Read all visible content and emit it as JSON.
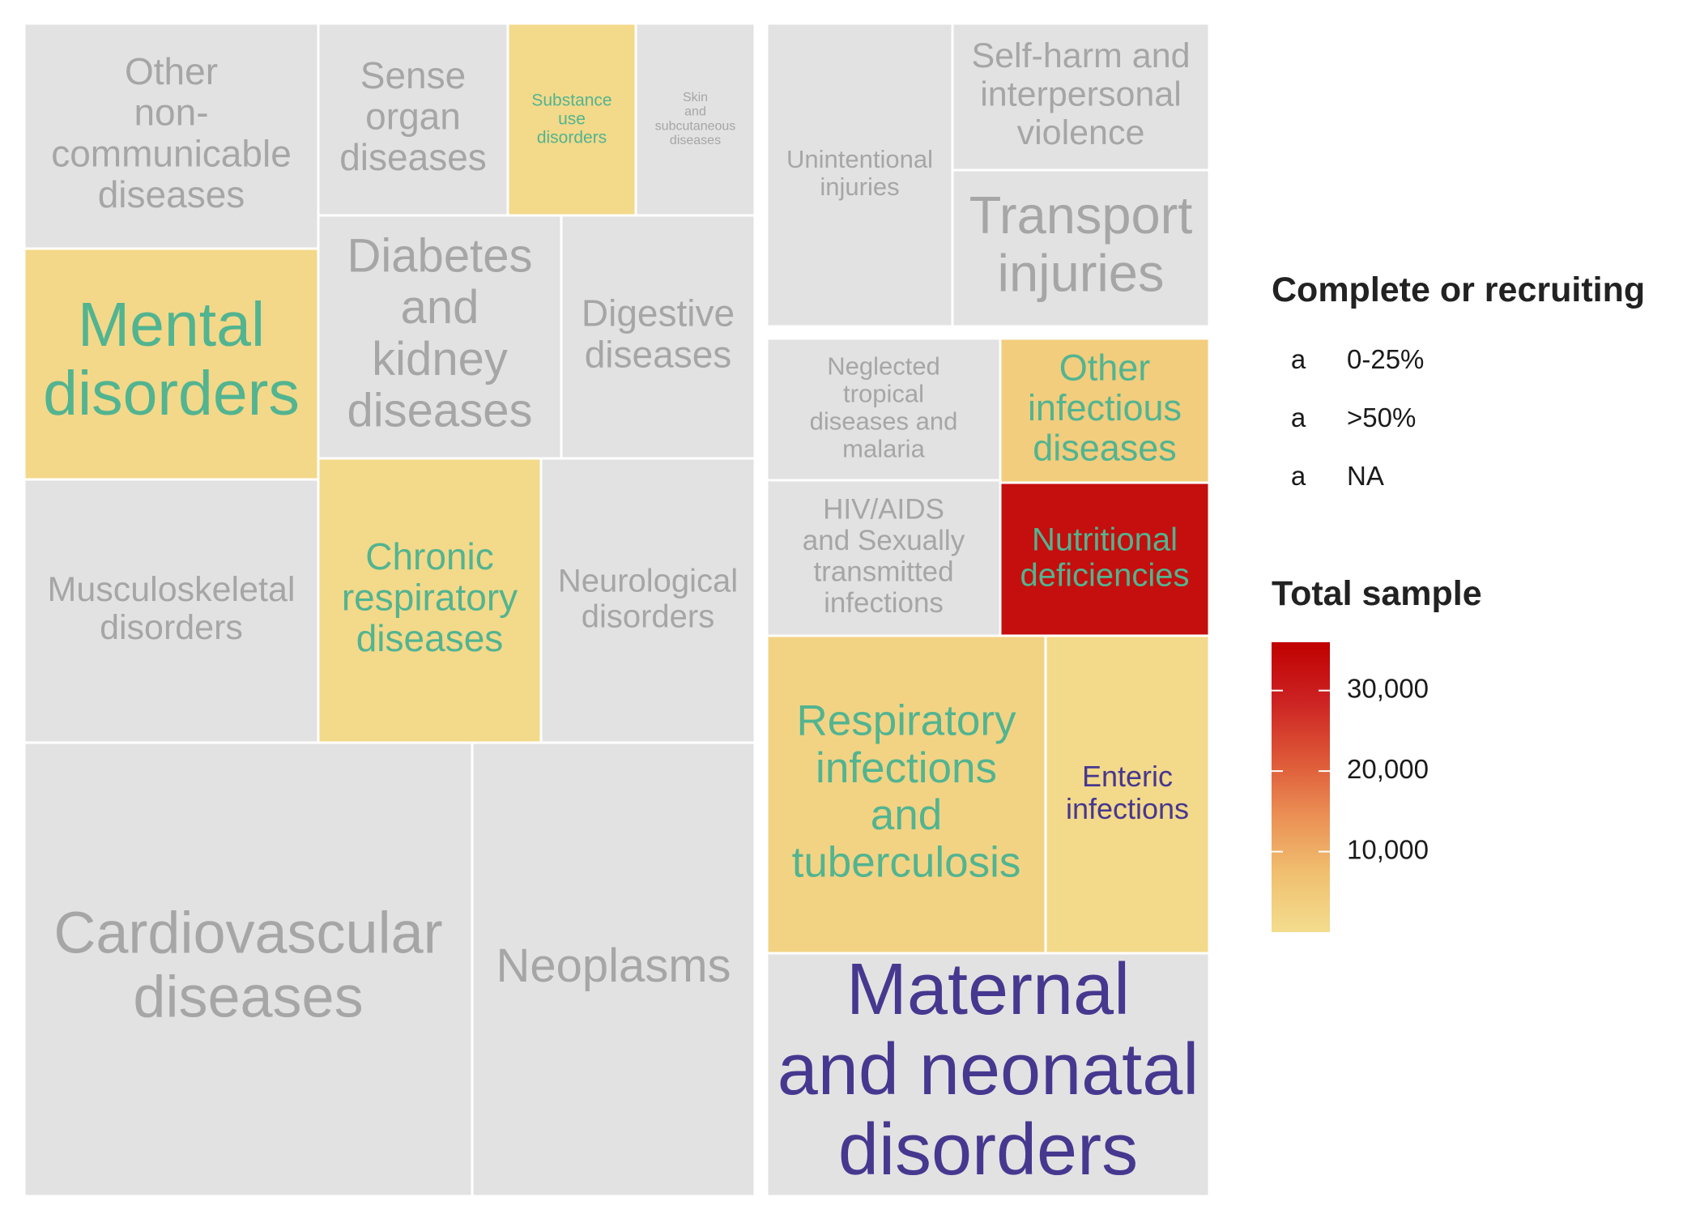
{
  "chart_data": {
    "type": "treemap",
    "groups": [
      {
        "cells": [
          {
            "label": "Other\nnon-\ncommunicable\ndiseases",
            "status": "NA",
            "total_sample": null
          },
          {
            "label": "Sense\norgan\ndiseases",
            "status": "NA",
            "total_sample": null
          },
          {
            "label": "Substance\nuse\ndisorders",
            "status": ">50%",
            "total_sample": 1000
          },
          {
            "label": "Skin\nand\nsubcutaneous\ndiseases",
            "status": "NA",
            "total_sample": null
          },
          {
            "label": "Mental\ndisorders",
            "status": ">50%",
            "total_sample": 1200
          },
          {
            "label": "Diabetes\nand\nkidney\ndiseases",
            "status": "NA",
            "total_sample": null
          },
          {
            "label": "Digestive\ndiseases",
            "status": "NA",
            "total_sample": null
          },
          {
            "label": "Musculoskeletal\ndisorders",
            "status": "NA",
            "total_sample": null
          },
          {
            "label": "Chronic\nrespiratory\ndiseases",
            "status": ">50%",
            "total_sample": 1000
          },
          {
            "label": "Neurological\ndisorders",
            "status": "NA",
            "total_sample": null
          },
          {
            "label": "Cardiovascular\ndiseases",
            "status": "NA",
            "total_sample": null
          },
          {
            "label": "Neoplasms",
            "status": "NA",
            "total_sample": null
          }
        ]
      },
      {
        "cells": [
          {
            "label": "Unintentional\ninjuries",
            "status": "NA",
            "total_sample": null
          },
          {
            "label": "Self-harm and\ninterpersonal\nviolence",
            "status": "NA",
            "total_sample": null
          },
          {
            "label": "Transport\ninjuries",
            "status": "NA",
            "total_sample": null
          }
        ]
      },
      {
        "cells": [
          {
            "label": "Neglected\ntropical\ndiseases and\nmalaria",
            "status": "NA",
            "total_sample": null
          },
          {
            "label": "Other\ninfectious\ndiseases",
            "status": ">50%",
            "total_sample": 4000
          },
          {
            "label": "HIV/AIDS\nand Sexually\ntransmitted\ninfections",
            "status": "NA",
            "total_sample": null
          },
          {
            "label": "Nutritional\ndeficiencies",
            "status": ">50%",
            "total_sample": 33000
          },
          {
            "label": "Respiratory\ninfections\nand\ntuberculosis",
            "status": ">50%",
            "total_sample": 2500
          },
          {
            "label": "Enteric\ninfections",
            "status": "0-25%",
            "total_sample": 1000
          },
          {
            "label": "Maternal\nand neonatal\ndisorders",
            "status": "0-25%",
            "total_sample": null
          }
        ]
      }
    ],
    "legend_status": {
      "title": "Complete or recruiting",
      "glyph": "a",
      "entries": [
        {
          "label": "0-25%",
          "color": "#46388f"
        },
        {
          "label": ">50%",
          "color": "#52b490"
        },
        {
          "label": "NA",
          "color": "#a6a6a6"
        }
      ]
    },
    "legend_sample": {
      "title": "Total sample",
      "ticks": [
        10000,
        20000,
        30000
      ],
      "tick_labels": [
        "10,000",
        "20,000",
        "30,000"
      ],
      "range": [
        0,
        36000
      ],
      "gradient": [
        "#f3dd8e",
        "#f0c070",
        "#eb9055",
        "#dd5636",
        "#cc2222",
        "#c00000"
      ]
    },
    "na_fill": "#e2e2e2",
    "legend_placement": "right"
  }
}
